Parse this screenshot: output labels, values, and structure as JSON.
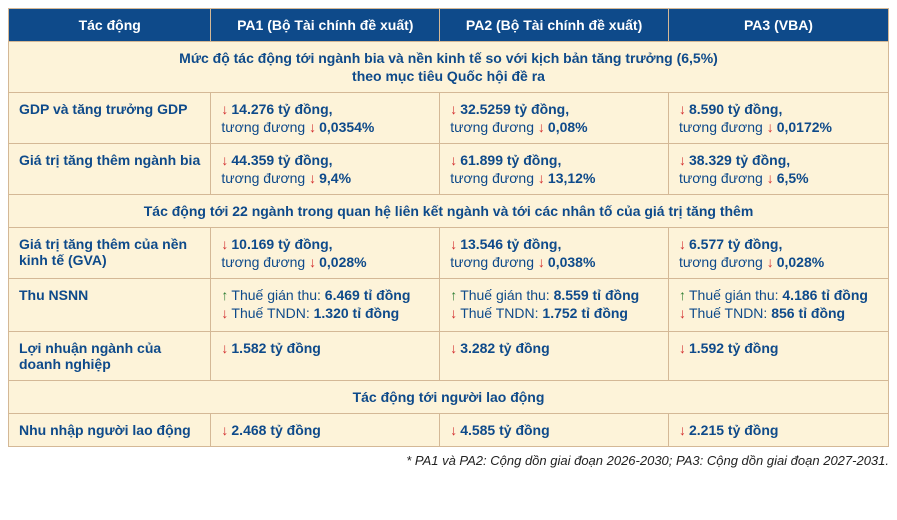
{
  "header": {
    "col1": "Tác động",
    "col2": "PA1 (Bộ Tài chính đề xuất)",
    "col3": "PA2 (Bộ Tài chính đề xuất)",
    "col4": "PA3 (VBA)"
  },
  "section1": {
    "title_line1": "Mức độ tác động tới ngành bia và nền kinh tế so với kịch bản tăng trưởng (6,5%)",
    "title_line2": "theo mục tiêu Quốc hội đề ra",
    "rows": [
      {
        "label": "GDP và tăng trưởng GDP",
        "pa1": {
          "amount": "14.276 tỷ đồng,",
          "prefix": "tương đương ",
          "pct": "0,0354%"
        },
        "pa2": {
          "amount": "32.5259 tỷ đồng,",
          "prefix": "tương đương ",
          "pct": "0,08%"
        },
        "pa3": {
          "amount": "8.590 tỷ đồng,",
          "prefix": "tương đương ",
          "pct": "0,0172%"
        }
      },
      {
        "label": "Giá trị tăng thêm ngành bia",
        "pa1": {
          "amount": "44.359 tỷ đồng,",
          "prefix": "tương đương ",
          "pct": "9,4%"
        },
        "pa2": {
          "amount": "61.899 tỷ đồng,",
          "prefix": "tương đương ",
          "pct": "13,12%"
        },
        "pa3": {
          "amount": "38.329 tỷ đồng,",
          "prefix": "tương đương ",
          "pct": "6,5%"
        }
      }
    ]
  },
  "section2": {
    "title": "Tác động tới 22 ngành trong quan hệ liên kết ngành và tới các nhân tố của giá trị tăng thêm",
    "rows": [
      {
        "label": "Giá trị tăng thêm của nền kinh tế (GVA)",
        "pa1": {
          "amount": "10.169 tỷ đồng,",
          "prefix": "tương đương ",
          "pct": "0,028%"
        },
        "pa2": {
          "amount": "13.546 tỷ đồng,",
          "prefix": "tương đương ",
          "pct": "0,038%"
        },
        "pa3": {
          "amount": "6.577 tỷ đồng,",
          "prefix": "tương đương ",
          "pct": "0,028%"
        }
      }
    ],
    "nsnn": {
      "label": "Thu NSNN",
      "pa1": {
        "indirect_lbl": "Thuế gián thu: ",
        "indirect_val": "6.469 tỉ đồng",
        "tndn_lbl": "Thuế TNDN: ",
        "tndn_val": "1.320 tỉ đồng"
      },
      "pa2": {
        "indirect_lbl": "Thuế gián thu: ",
        "indirect_val": "8.559 tỉ đồng",
        "tndn_lbl": "Thuế TNDN: ",
        "tndn_val": "1.752 tỉ đồng"
      },
      "pa3": {
        "indirect_lbl": "Thuế gián thu: ",
        "indirect_val": "4.186 tỉ đồng",
        "tndn_lbl": "Thuế TNDN: ",
        "tndn_val": "856 tỉ đồng"
      }
    },
    "profit": {
      "label": "Lợi nhuận ngành của doanh nghiệp",
      "pa1": "1.582 tỷ đồng",
      "pa2": "3.282 tỷ đồng",
      "pa3": "1.592 tỷ đồng"
    }
  },
  "section3": {
    "title": "Tác động tới người lao động",
    "row": {
      "label": "Nhu nhập người lao động",
      "pa1": "2.468 tỷ đồng",
      "pa2": "4.585 tỷ đồng",
      "pa3": "2.215 tỷ đồng"
    }
  },
  "footnote": "* PA1 và PA2: Cộng dồn giai đoạn 2026-2030; PA3: Cộng dồn giai đoạn 2027-2031.",
  "icons": {
    "down": "↓",
    "up": "↑"
  },
  "colors": {
    "header_bg": "#0e4a8a",
    "header_fg": "#ffffff",
    "cell_bg": "#fdf3d9",
    "cell_fg": "#0e4a8a",
    "border": "#d4b896",
    "arrow_down": "#d32f2f",
    "arrow_up": "#2e7d32"
  }
}
